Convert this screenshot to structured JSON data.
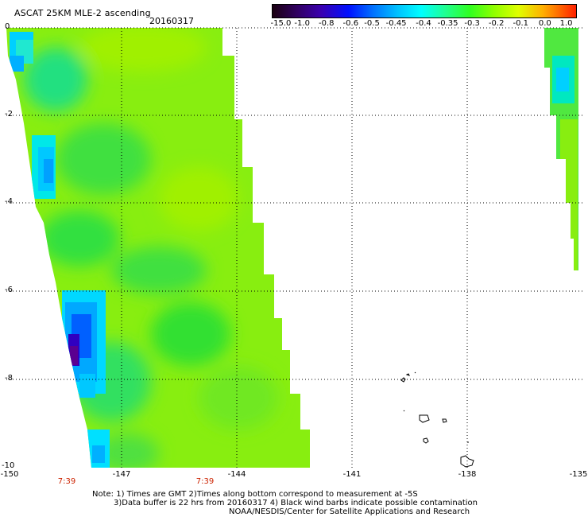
{
  "header": {
    "title": "ASCAT 25KM MLE-2 ascending",
    "date": "20160317"
  },
  "colorbar": {
    "labels": [
      "-15.0",
      "-1.0",
      "-0.8",
      "-0.6",
      "-0.5",
      "-0.45",
      "-0.4",
      "-0.35",
      "-0.3",
      "-0.2",
      "-0.1",
      "0.0",
      "1.0"
    ],
    "colors": [
      "#1a0010",
      "#300060",
      "#3a00b0",
      "#0010ff",
      "#0070ff",
      "#00c0ff",
      "#00ffff",
      "#20ff90",
      "#30ff20",
      "#90ff00",
      "#e0ff00",
      "#ffb000",
      "#ff2000"
    ]
  },
  "axes": {
    "y_labels": [
      "0",
      "-2",
      "-4",
      "-6",
      "-8",
      "-10"
    ],
    "x_labels": [
      "-150",
      "-147",
      "-144",
      "-141",
      "-138",
      "-135"
    ],
    "x_range": [
      -150,
      -135
    ],
    "y_range": [
      -10,
      0
    ]
  },
  "times": [
    "7:39",
    "7:39"
  ],
  "notes": {
    "line1": "Note: 1) Times are GMT 2)Times along bottom correspond to measurement at -5S",
    "line2": "3)Data buffer is 22 hrs from 20160317 4) Black wind barbs indicate possible contamination",
    "line3": "NOAA/NESDIS/Center for Satellite Applications and Research"
  },
  "colors": {
    "swath_base": "#88ee10",
    "grid": "#000000",
    "time_label": "#cc2200"
  }
}
